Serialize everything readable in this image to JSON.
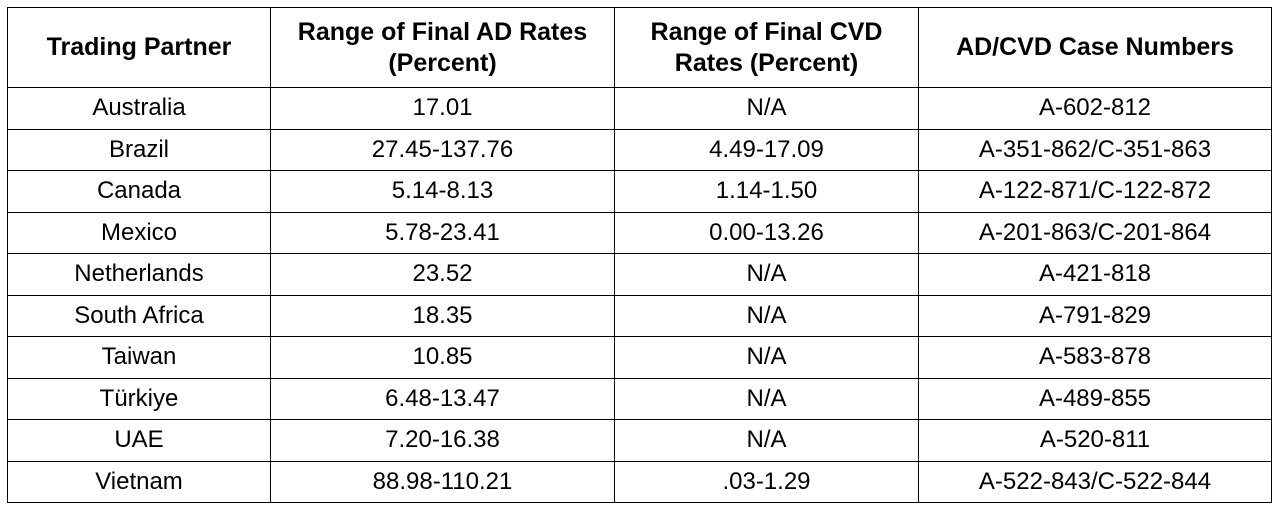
{
  "table": {
    "headers": [
      "Trading Partner",
      "Range of Final AD Rates (Percent)",
      "Range of Final CVD Rates (Percent)",
      "AD/CVD Case Numbers"
    ],
    "rows": [
      [
        "Australia",
        "17.01",
        "N/A",
        "A-602-812"
      ],
      [
        "Brazil",
        "27.45-137.76",
        "4.49-17.09",
        "A-351-862/C-351-863"
      ],
      [
        "Canada",
        "5.14-8.13",
        "1.14-1.50",
        "A-122-871/C-122-872"
      ],
      [
        "Mexico",
        "5.78-23.41",
        "0.00-13.26",
        "A-201-863/C-201-864"
      ],
      [
        "Netherlands",
        "23.52",
        "N/A",
        "A-421-818"
      ],
      [
        "South Africa",
        "18.35",
        "N/A",
        "A-791-829"
      ],
      [
        "Taiwan",
        "10.85",
        "N/A",
        "A-583-878"
      ],
      [
        "Türkiye",
        "6.48-13.47",
        "N/A",
        "A-489-855"
      ],
      [
        "UAE",
        "7.20-16.38",
        "N/A",
        "A-520-811"
      ],
      [
        "Vietnam",
        "88.98-110.21",
        ".03-1.29",
        "A-522-843/C-522-844"
      ]
    ]
  }
}
